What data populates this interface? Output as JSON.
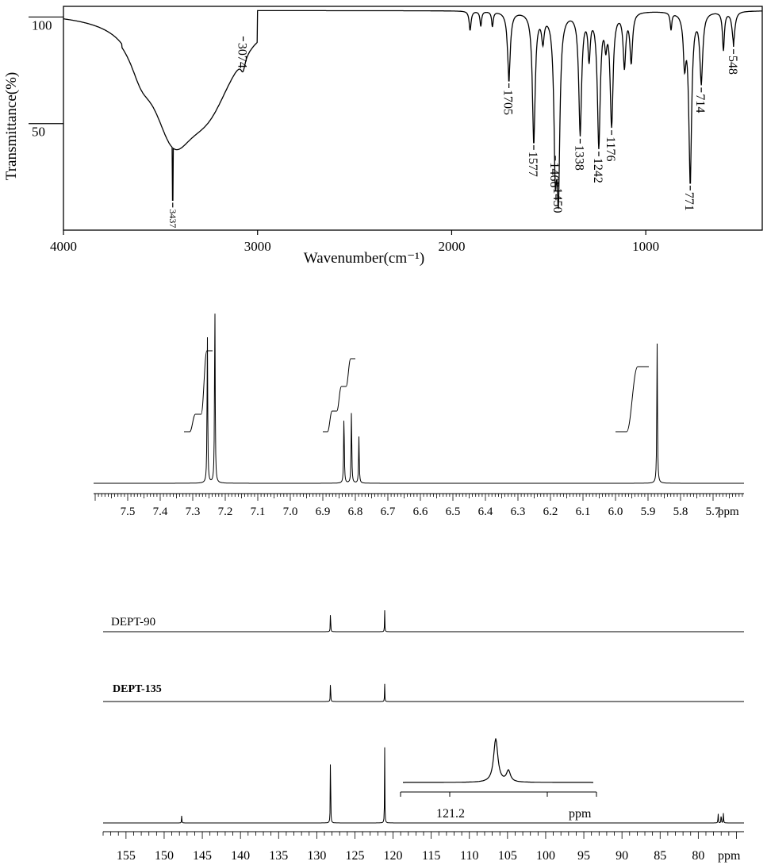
{
  "chart_data": [
    {
      "type": "line",
      "panel": "ir-spectrum",
      "xlabel": "Wavenumber(cm⁻¹)",
      "ylabel": "Transmittance(%)",
      "xlim": [
        4000,
        400
      ],
      "ylim": [
        0,
        105
      ],
      "x_ticks": [
        4000,
        3000,
        2000,
        1000
      ],
      "y_ticks": [
        100,
        50
      ],
      "peaks": [
        {
          "label": "3437",
          "x": 3437,
          "y": 14
        },
        {
          "label": "3074",
          "x": 3074,
          "y": 92
        },
        {
          "label": "1705",
          "x": 1705,
          "y": 70
        },
        {
          "label": "1577",
          "x": 1577,
          "y": 41
        },
        {
          "label": "1466",
          "x": 1466,
          "y": 36
        },
        {
          "label": "1450",
          "x": 1450,
          "y": 24
        },
        {
          "label": "1338",
          "x": 1338,
          "y": 44
        },
        {
          "label": "1242",
          "x": 1242,
          "y": 38
        },
        {
          "label": "1176",
          "x": 1176,
          "y": 48
        },
        {
          "label": "771",
          "x": 771,
          "y": 22
        },
        {
          "label": "714",
          "x": 714,
          "y": 68
        },
        {
          "label": "548",
          "x": 548,
          "y": 86
        }
      ]
    },
    {
      "type": "line",
      "panel": "1h-nmr",
      "x_unit": "ppm",
      "xlim": [
        7.6,
        5.6
      ],
      "x_tick_labels": [
        "7.5",
        "7.4",
        "7.3",
        "7.2",
        "7.1",
        "7.0",
        "6.9",
        "6.8",
        "6.7",
        "6.6",
        "6.5",
        "6.4",
        "6.3",
        "6.2",
        "6.1",
        "6.0",
        "5.9",
        "5.8",
        "5.7"
      ],
      "peaks": [
        {
          "x": 7.255,
          "height": 0.82
        },
        {
          "x": 7.232,
          "height": 1.0
        },
        {
          "x": 6.835,
          "height": 0.38
        },
        {
          "x": 6.812,
          "height": 0.4
        },
        {
          "x": 6.789,
          "height": 0.26
        },
        {
          "x": 5.872,
          "height": 0.78
        }
      ]
    },
    {
      "type": "line",
      "panel": "13c-nmr",
      "x_unit": "ppm",
      "xlim": [
        158,
        73
      ],
      "x_tick_labels": [
        "155",
        "150",
        "145",
        "140",
        "135",
        "130",
        "125",
        "120",
        "115",
        "110",
        "105",
        "100",
        "95",
        "90",
        "85",
        "80"
      ],
      "spectra": [
        {
          "name": "DEPT-90",
          "peaks": [
            {
              "x": 128.2,
              "height": 1.0
            },
            {
              "x": 121.1,
              "height": 0.85
            }
          ]
        },
        {
          "name": "DEPT-135",
          "peaks": [
            {
              "x": 128.2,
              "height": 1.0
            },
            {
              "x": 121.1,
              "height": 0.7
            }
          ]
        },
        {
          "name": "",
          "peaks": [
            {
              "x": 147.7,
              "height": 0.09
            },
            {
              "x": 128.2,
              "height": 1.0
            },
            {
              "x": 121.1,
              "height": 0.85
            },
            {
              "x": 77.4,
              "height": 0.13
            },
            {
              "x": 77.0,
              "height": 0.13
            },
            {
              "x": 76.7,
              "height": 0.13
            }
          ]
        }
      ],
      "inset": {
        "x_unit": "ppm",
        "x_tick_label": "121.2"
      }
    }
  ]
}
